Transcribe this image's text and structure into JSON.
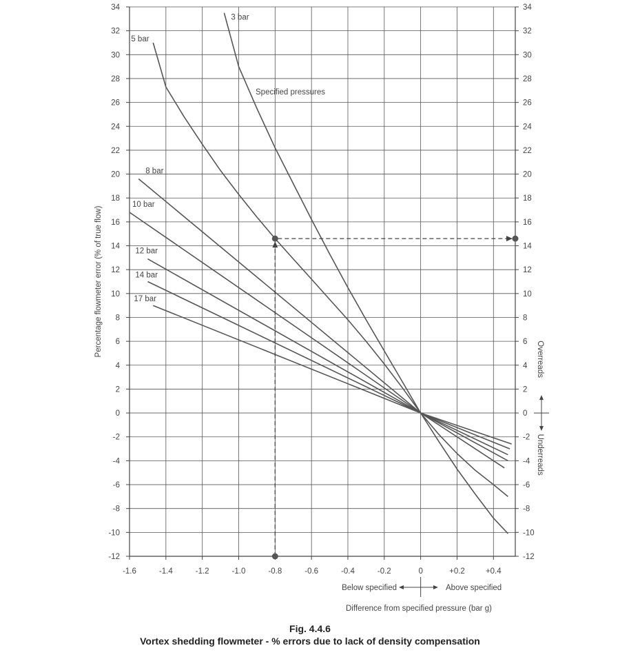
{
  "figure": {
    "number": "Fig. 4.4.6",
    "title": "Vortex shedding flowmeter - % errors due to lack of density compensation"
  },
  "chart_data": {
    "type": "line",
    "xlabel": "Difference from specified pressure (bar g)",
    "ylabel": "Percentage flowmeter error (% of true flow)",
    "xlim": [
      -1.6,
      0.52
    ],
    "ylim": [
      -12,
      34
    ],
    "x_ticks": [
      -1.6,
      -1.4,
      -1.2,
      -1.0,
      -0.8,
      -0.6,
      -0.4,
      -0.2,
      0,
      0.2,
      0.4
    ],
    "x_tick_labels": [
      "-1.6",
      "-1.4",
      "-1.2",
      "-1.0",
      "-0.8",
      "-0.6",
      "-0.4",
      "-0.2",
      "0",
      "+0.2",
      "+0.4"
    ],
    "y_ticks": [
      -12,
      -10,
      -8,
      -6,
      -4,
      -2,
      0,
      2,
      4,
      6,
      8,
      10,
      12,
      14,
      16,
      18,
      20,
      22,
      24,
      26,
      28,
      30,
      32,
      34
    ],
    "y_tick_labels": [
      "-12",
      "-10",
      "-8",
      "-6",
      "-4",
      "-2",
      "0",
      "2",
      "4",
      "6",
      "8",
      "10",
      "12",
      "14",
      "16",
      "18",
      "20",
      "22",
      "24",
      "26",
      "28",
      "30",
      "32",
      "34"
    ],
    "grid": true,
    "series": [
      {
        "name": "3 bar",
        "x": [
          -1.08,
          -1.0,
          -0.9,
          -0.8,
          -0.7,
          -0.6,
          -0.5,
          -0.4,
          -0.3,
          -0.2,
          -0.1,
          0,
          0.1,
          0.2,
          0.3,
          0.4,
          0.48
        ],
        "y": [
          33.5,
          29.0,
          25.5,
          22.2,
          19.2,
          16.2,
          13.3,
          10.5,
          7.8,
          5.2,
          2.6,
          0,
          -2.4,
          -4.7,
          -6.8,
          -8.8,
          -10.1
        ]
      },
      {
        "name": "5 bar",
        "x": [
          -1.47,
          -1.4,
          -1.3,
          -1.2,
          -1.1,
          -1.0,
          -0.9,
          -0.8,
          -0.7,
          -0.6,
          -0.5,
          -0.4,
          -0.3,
          -0.2,
          -0.1,
          0,
          0.1,
          0.2,
          0.3,
          0.4,
          0.48
        ],
        "y": [
          31.0,
          27.3,
          24.8,
          22.5,
          20.3,
          18.3,
          16.4,
          14.6,
          12.9,
          11.2,
          9.5,
          7.8,
          6.0,
          4.1,
          2.1,
          0,
          -1.8,
          -3.4,
          -4.8,
          -6.0,
          -7.0
        ]
      },
      {
        "name": "8 bar",
        "x": [
          -1.55,
          0,
          0.46
        ],
        "y": [
          19.6,
          0,
          -4.6
        ]
      },
      {
        "name": "10 bar",
        "x": [
          -1.6,
          0,
          0.48
        ],
        "y": [
          16.8,
          0,
          -4.0
        ]
      },
      {
        "name": "12 bar",
        "x": [
          -1.5,
          0,
          0.48
        ],
        "y": [
          12.9,
          0,
          -3.5
        ]
      },
      {
        "name": "14 bar",
        "x": [
          -1.5,
          0,
          0.49
        ],
        "y": [
          11.0,
          0,
          -3.0
        ]
      },
      {
        "name": "17 bar",
        "x": [
          -1.47,
          0,
          0.5
        ],
        "y": [
          9.0,
          0,
          -2.6
        ]
      }
    ],
    "annotations": {
      "specified_pressures": "Specified pressures",
      "example_x": -0.8,
      "example_y": 14.6,
      "overreads": "Overreads",
      "underreads": "Underreads",
      "below_specified": "Below specified",
      "above_specified": "Above specified"
    }
  }
}
